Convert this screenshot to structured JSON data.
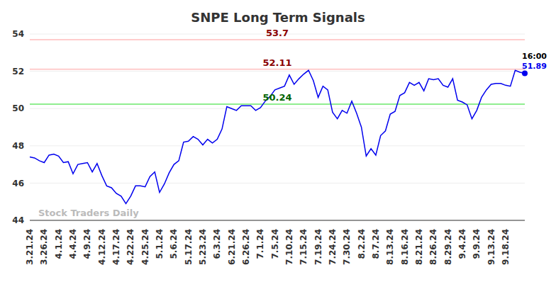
{
  "chart_data": {
    "type": "line",
    "title": "SNPE Long Term Signals",
    "categories": [
      "3.21.24",
      null,
      null,
      "3.26.24",
      null,
      null,
      "4.1.24",
      null,
      null,
      "4.4.24",
      null,
      null,
      "4.9.24",
      null,
      null,
      "4.12.24",
      null,
      null,
      "4.17.24",
      null,
      null,
      "4.22.24",
      null,
      null,
      "4.25.24",
      null,
      null,
      "5.1.24",
      null,
      null,
      "5.6.24",
      null,
      null,
      "5.17.24",
      null,
      null,
      "5.23.24",
      null,
      null,
      "6.3.24",
      null,
      null,
      "6.21.24",
      null,
      null,
      "6.26.24",
      null,
      null,
      "7.1.24",
      null,
      null,
      "7.5.24",
      null,
      null,
      "7.10.24",
      null,
      null,
      "7.15.24",
      null,
      null,
      "7.19.24",
      null,
      null,
      "7.24.24",
      null,
      null,
      "7.30.24",
      null,
      null,
      "8.2.24",
      null,
      null,
      "8.7.24",
      null,
      null,
      "8.13.24",
      null,
      null,
      "8.16.24",
      null,
      null,
      "8.21.24",
      null,
      null,
      "8.26.24",
      null,
      null,
      "8.29.24",
      null,
      null,
      "9.4.24",
      null,
      null,
      "9.9.24",
      null,
      null,
      "9.13.24",
      null,
      null,
      "9.18.24",
      null,
      null,
      null,
      null
    ],
    "values": [
      47.4,
      47.35,
      47.2,
      47.1,
      47.5,
      47.55,
      47.45,
      47.1,
      47.15,
      46.5,
      47.0,
      47.05,
      47.1,
      46.6,
      47.05,
      46.4,
      45.85,
      45.75,
      45.45,
      45.3,
      44.9,
      45.3,
      45.85,
      45.85,
      45.8,
      46.35,
      46.6,
      45.5,
      45.95,
      46.55,
      47.0,
      47.2,
      48.2,
      48.25,
      48.5,
      48.35,
      48.05,
      48.35,
      48.15,
      48.35,
      48.9,
      50.1,
      50.0,
      49.9,
      50.15,
      50.15,
      50.15,
      49.9,
      50.05,
      50.4,
      50.65,
      51.0,
      51.1,
      51.2,
      51.8,
      51.3,
      51.6,
      51.85,
      52.05,
      51.5,
      50.6,
      51.2,
      51.0,
      49.8,
      49.45,
      49.9,
      49.75,
      50.4,
      49.75,
      49.0,
      47.45,
      47.85,
      47.5,
      48.55,
      48.8,
      49.7,
      49.85,
      50.7,
      50.85,
      51.4,
      51.25,
      51.4,
      50.95,
      51.6,
      51.55,
      51.6,
      51.25,
      51.15,
      51.6,
      50.45,
      50.35,
      50.2,
      49.45,
      49.9,
      50.6,
      51.0,
      51.3,
      51.35,
      51.35,
      51.25,
      51.2,
      52.05,
      51.95,
      51.89
    ],
    "color": "#0000ee",
    "ylim": [
      44,
      54
    ],
    "yticks": [
      44,
      46,
      48,
      50,
      52,
      54
    ],
    "grid": true,
    "reference_lines": [
      {
        "value": 53.7,
        "label": "53.7",
        "color": "#ffcccc",
        "label_color": "#8b0000"
      },
      {
        "value": 52.11,
        "label": "52.11",
        "color": "#ffcccc",
        "label_color": "#8b0000"
      },
      {
        "value": 50.24,
        "label": "50.24",
        "color": "#90ee90",
        "label_color": "#006400"
      }
    ],
    "annotations": [
      {
        "text": "16:00",
        "color": "#000000"
      },
      {
        "text": "51.89",
        "color": "#0000ee"
      }
    ],
    "watermark": "Stock Traders Daily"
  }
}
